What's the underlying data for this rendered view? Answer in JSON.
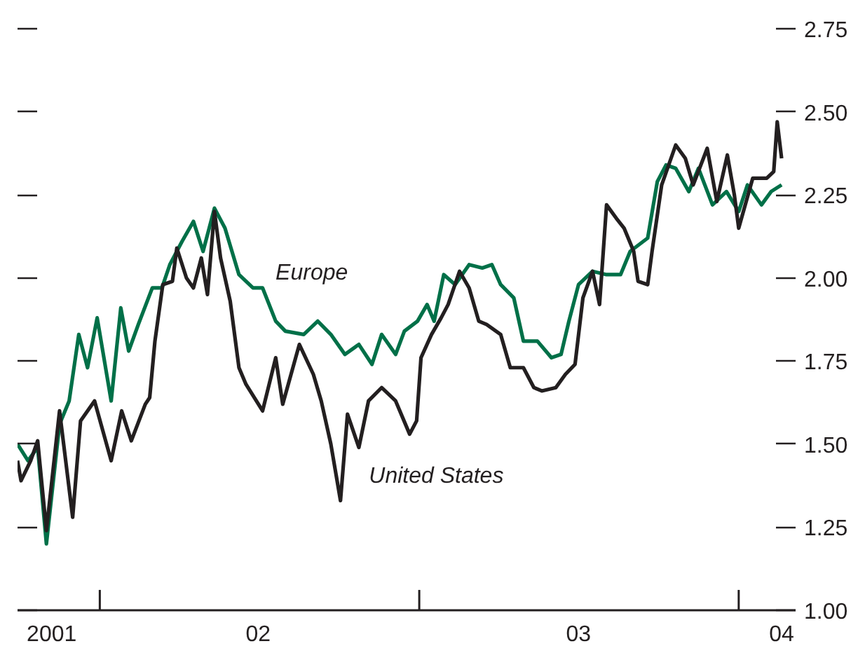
{
  "chart_data": {
    "type": "line",
    "xlim": [
      "2001-09-29",
      "2004-03-06"
    ],
    "xticks": [
      {
        "value": "2001-11-07",
        "label": "2001"
      },
      {
        "value": "2002-01-01",
        "label": null
      },
      {
        "value": "2002-07-01",
        "label": "02"
      },
      {
        "value": "2003-01-01",
        "label": null
      },
      {
        "value": "2003-07-02",
        "label": "03"
      },
      {
        "value": "2004-01-01",
        "label": null
      },
      {
        "value": "2004-02-19",
        "label": "04"
      }
    ],
    "ylim": [
      1.0,
      2.75
    ],
    "yticks": [
      {
        "value": 1.0,
        "label": "1.00"
      },
      {
        "value": 1.25,
        "label": "1.25"
      },
      {
        "value": 1.5,
        "label": "1.50"
      },
      {
        "value": 1.75,
        "label": "1.75"
      },
      {
        "value": 2.0,
        "label": "2.00"
      },
      {
        "value": 2.25,
        "label": "2.25"
      },
      {
        "value": 2.5,
        "label": "2.50"
      },
      {
        "value": 2.75,
        "label": "2.75"
      }
    ],
    "grid": false,
    "series": [
      {
        "name": "Europe",
        "color": "#007048",
        "x": [
          "2001-09-29",
          "2001-10-11",
          "2001-10-22",
          "2001-11-01",
          "2001-11-16",
          "2001-11-27",
          "2001-12-08",
          "2001-12-18",
          "2001-12-29",
          "2002-01-14",
          "2002-01-25",
          "2002-02-03",
          "2002-02-14",
          "2002-03-02",
          "2002-03-13",
          "2002-03-22",
          "2002-04-05",
          "2002-04-18",
          "2002-04-29",
          "2002-05-12",
          "2002-05-24",
          "2002-06-09",
          "2002-06-25",
          "2002-07-06",
          "2002-07-21",
          "2002-08-01",
          "2002-08-22",
          "2002-09-07",
          "2002-09-22",
          "2002-10-08",
          "2002-10-24",
          "2002-11-08",
          "2002-11-19",
          "2002-12-05",
          "2002-12-15",
          "2002-12-30",
          "2003-01-10",
          "2003-01-18",
          "2003-01-29",
          "2003-02-11",
          "2003-02-27",
          "2003-03-14",
          "2003-03-25",
          "2003-04-04",
          "2003-04-19",
          "2003-04-30",
          "2003-05-16",
          "2003-06-01",
          "2003-06-12",
          "2003-06-21",
          "2003-07-02",
          "2003-07-18",
          "2003-08-03",
          "2003-08-19",
          "2003-08-30",
          "2003-09-19",
          "2003-09-30",
          "2003-10-10",
          "2003-10-21",
          "2003-11-05",
          "2003-11-16",
          "2003-12-02",
          "2003-12-18",
          "2004-01-01",
          "2004-01-11",
          "2004-01-27",
          "2004-02-07",
          "2004-02-19"
        ],
        "values": [
          1.5,
          1.45,
          1.49,
          1.2,
          1.56,
          1.63,
          1.83,
          1.73,
          1.88,
          1.63,
          1.91,
          1.78,
          1.86,
          1.97,
          1.97,
          2.04,
          2.11,
          2.17,
          2.08,
          2.21,
          2.15,
          2.01,
          1.97,
          1.97,
          1.87,
          1.84,
          1.83,
          1.87,
          1.83,
          1.77,
          1.8,
          1.74,
          1.83,
          1.77,
          1.84,
          1.87,
          1.92,
          1.87,
          2.01,
          1.98,
          2.04,
          2.03,
          2.04,
          1.98,
          1.94,
          1.81,
          1.81,
          1.76,
          1.77,
          1.87,
          1.98,
          2.02,
          2.01,
          2.01,
          2.08,
          2.12,
          2.29,
          2.34,
          2.33,
          2.26,
          2.33,
          2.22,
          2.26,
          2.2,
          2.28,
          2.22,
          2.26,
          2.28
        ]
      },
      {
        "name": "United States",
        "color": "#231f20",
        "x": [
          "2001-09-29",
          "2001-10-03",
          "2001-10-14",
          "2001-10-22",
          "2001-11-01",
          "2001-11-16",
          "2001-12-01",
          "2001-12-10",
          "2001-12-26",
          "2002-01-14",
          "2002-01-26",
          "2002-02-06",
          "2002-02-22",
          "2002-02-27",
          "2002-03-05",
          "2002-03-14",
          "2002-03-25",
          "2002-03-30",
          "2002-04-10",
          "2002-04-18",
          "2002-04-27",
          "2002-05-04",
          "2002-05-12",
          "2002-05-19",
          "2002-05-30",
          "2002-06-09",
          "2002-06-17",
          "2002-07-06",
          "2002-07-21",
          "2002-07-29",
          "2002-08-17",
          "2002-09-02",
          "2002-09-11",
          "2002-09-22",
          "2002-10-03",
          "2002-10-11",
          "2002-10-24",
          "2002-11-04",
          "2002-11-19",
          "2002-12-05",
          "2002-12-21",
          "2002-12-29",
          "2003-01-03",
          "2003-01-15",
          "2003-01-26",
          "2003-02-03",
          "2003-02-16",
          "2003-02-27",
          "2003-03-10",
          "2003-03-19",
          "2003-04-04",
          "2003-04-15",
          "2003-04-30",
          "2003-05-12",
          "2003-05-21",
          "2003-06-06",
          "2003-06-17",
          "2003-06-28",
          "2003-07-07",
          "2003-07-18",
          "2003-07-26",
          "2003-08-03",
          "2003-08-14",
          "2003-08-23",
          "2003-09-03",
          "2003-09-08",
          "2003-09-19",
          "2003-09-24",
          "2003-10-05",
          "2003-10-21",
          "2003-11-01",
          "2003-11-10",
          "2003-11-26",
          "2003-12-07",
          "2003-12-19",
          "2003-12-27",
          "2004-01-01",
          "2004-01-17",
          "2004-02-02",
          "2004-02-10",
          "2004-02-14",
          "2004-02-19"
        ],
        "values": [
          1.45,
          1.39,
          1.45,
          1.51,
          1.24,
          1.6,
          1.28,
          1.57,
          1.63,
          1.45,
          1.6,
          1.51,
          1.62,
          1.64,
          1.81,
          1.98,
          1.99,
          2.09,
          2.0,
          1.97,
          2.06,
          1.95,
          2.2,
          2.06,
          1.93,
          1.73,
          1.68,
          1.6,
          1.76,
          1.62,
          1.8,
          1.71,
          1.63,
          1.5,
          1.33,
          1.59,
          1.49,
          1.63,
          1.67,
          1.63,
          1.53,
          1.57,
          1.76,
          1.83,
          1.88,
          1.92,
          2.02,
          1.97,
          1.87,
          1.86,
          1.83,
          1.73,
          1.73,
          1.67,
          1.66,
          1.67,
          1.71,
          1.74,
          1.94,
          2.02,
          1.92,
          2.22,
          2.18,
          2.15,
          2.08,
          1.99,
          1.98,
          2.08,
          2.28,
          2.4,
          2.36,
          2.28,
          2.39,
          2.23,
          2.37,
          2.25,
          2.15,
          2.3,
          2.3,
          2.32,
          2.47,
          2.36
        ]
      }
    ]
  }
}
